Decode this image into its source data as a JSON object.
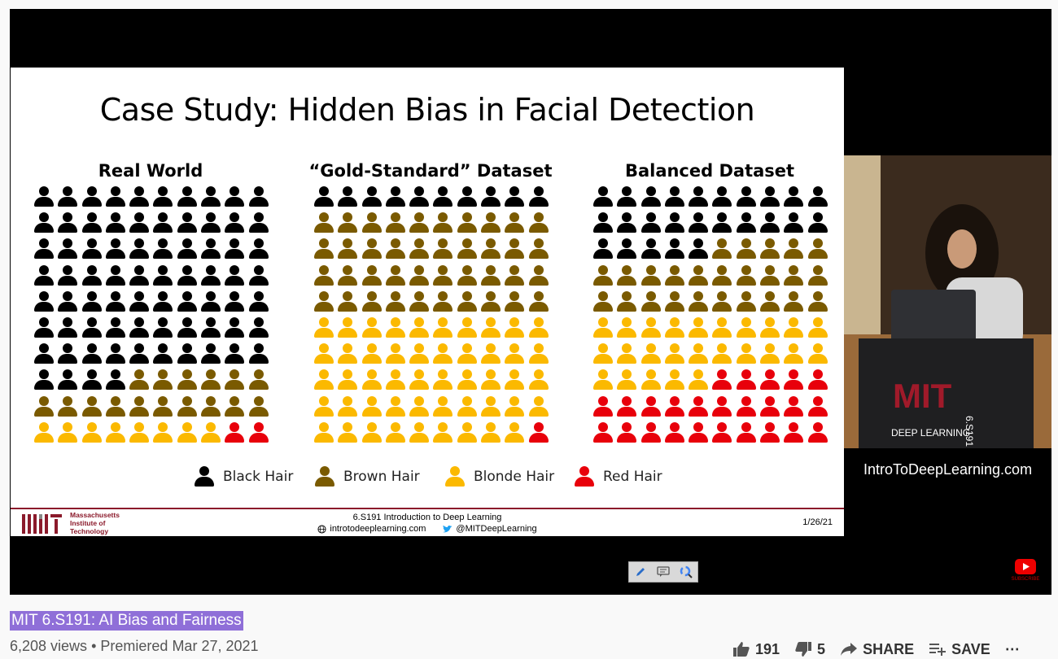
{
  "slide": {
    "title": "Case Study: Hidden Bias in Facial Detection",
    "panels": [
      {
        "title": "Real World",
        "counts": {
          "black": 74,
          "brown": 16,
          "blonde": 8,
          "red": 2
        }
      },
      {
        "title": "“Gold-Standard” Dataset",
        "counts": {
          "black": 10,
          "brown": 40,
          "blonde": 49,
          "red": 1
        }
      },
      {
        "title": "Balanced Dataset",
        "counts": {
          "black": 25,
          "brown": 25,
          "blonde": 25,
          "red": 25
        }
      }
    ],
    "legend": [
      {
        "label": "Black Hair",
        "color": "#000000"
      },
      {
        "label": "Brown Hair",
        "color": "#7a5a00"
      },
      {
        "label": "Blonde Hair",
        "color": "#fbb900"
      },
      {
        "label": "Red Hair",
        "color": "#e8000b"
      }
    ],
    "footer": {
      "institute_lines": [
        "Massachusetts",
        "Institute of",
        "Technology"
      ],
      "course": "6.S191 Introduction to Deep Learning",
      "site": "introtodeeplearning.com",
      "twitter": "@MITDeepLearning",
      "date": "1/26/21"
    }
  },
  "camera": {
    "podium_logo": "MIT",
    "podium_course": "6.S191",
    "podium_text": "DEEP LEARNING"
  },
  "overlay_url": "IntroToDeepLearning.com",
  "youtube_badge": "SUBSCRIBE",
  "video": {
    "title": "MIT 6.S191: AI Bias and Fairness",
    "views": "6,208 views",
    "separator": "•",
    "premiered": "Premiered Mar 27, 2021",
    "likes": "191",
    "dislikes": "5",
    "share_label": "SHARE",
    "save_label": "SAVE",
    "more_label": "⋯"
  },
  "icons": [
    "pencil-icon",
    "comment-icon",
    "google-icon",
    "thumbs-up-icon",
    "thumbs-down-icon",
    "share-icon",
    "save-playlist-icon",
    "more-icon",
    "globe-icon",
    "twitter-icon"
  ]
}
